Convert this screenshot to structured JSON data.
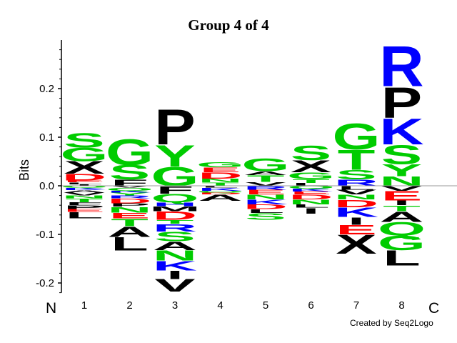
{
  "chart_data": {
    "type": "sequence-logo",
    "title": "Group 4 of 4",
    "ylabel": "Bits",
    "xlabel": "",
    "ylim": [
      -0.22,
      0.3
    ],
    "yticks": [
      0.2,
      0.1,
      0.0,
      -0.1,
      -0.2
    ],
    "ytick_labels": [
      "0.2",
      "0.1",
      "0.0",
      "-0.1",
      "-0.2"
    ],
    "positions": [
      "1",
      "2",
      "3",
      "4",
      "5",
      "6",
      "7",
      "8"
    ],
    "n_label": "N",
    "c_label": "C",
    "grid": false,
    "legend": "none",
    "colors": {
      "polar": "#00cc00",
      "hydrophobic": "#000000",
      "basic": "#0000ff",
      "acidic": "#ff0000",
      "ST_small": "#00cc00"
    },
    "columns": [
      {
        "position": "1",
        "positive": [
          {
            "aa": "I",
            "bits": 0.003
          },
          {
            "aa": "L",
            "bits": 0.004
          },
          {
            "aa": "E",
            "bits": 0.004
          },
          {
            "aa": "D",
            "bits": 0.014
          },
          {
            "aa": "X",
            "bits": 0.026
          },
          {
            "aa": "G",
            "bits": 0.028
          },
          {
            "aa": "S",
            "bits": 0.03
          }
        ],
        "negative": [
          {
            "aa": "Q",
            "bits": 0.004
          },
          {
            "aa": "K",
            "bits": 0.005
          },
          {
            "aa": "A",
            "bits": 0.005
          },
          {
            "aa": "V",
            "bits": 0.006
          },
          {
            "aa": "N",
            "bits": 0.006
          },
          {
            "aa": "T",
            "bits": 0.008
          },
          {
            "aa": "F",
            "bits": 0.006
          },
          {
            "aa": "P",
            "bits": 0.008
          },
          {
            "aa": "E",
            "bits": 0.006
          },
          {
            "aa": "L",
            "bits": 0.013
          }
        ]
      },
      {
        "position": "2",
        "positive": [
          {
            "aa": "F",
            "bits": 0.013
          },
          {
            "aa": "S",
            "bits": 0.03
          },
          {
            "aa": "G",
            "bits": 0.055
          }
        ],
        "negative": [
          {
            "aa": "V",
            "bits": 0.004
          },
          {
            "aa": "Q",
            "bits": 0.006
          },
          {
            "aa": "K",
            "bits": 0.004
          },
          {
            "aa": "Y",
            "bits": 0.006
          },
          {
            "aa": "R",
            "bits": 0.006
          },
          {
            "aa": "D",
            "bits": 0.01
          },
          {
            "aa": "P",
            "bits": 0.007
          },
          {
            "aa": "N",
            "bits": 0.012
          },
          {
            "aa": "E",
            "bits": 0.012
          },
          {
            "aa": "T",
            "bits": 0.016
          },
          {
            "aa": "A",
            "bits": 0.022
          },
          {
            "aa": "L",
            "bits": 0.028
          }
        ]
      },
      {
        "position": "3",
        "positive": [
          {
            "aa": "G",
            "bits": 0.04
          },
          {
            "aa": "Y",
            "bits": 0.045
          },
          {
            "aa": "P",
            "bits": 0.075
          }
        ],
        "negative": [
          {
            "aa": "F",
            "bits": 0.016
          },
          {
            "aa": "Q",
            "bits": 0.018
          },
          {
            "aa": "H",
            "bits": 0.008
          },
          {
            "aa": "M",
            "bits": 0.01
          },
          {
            "aa": "D",
            "bits": 0.018
          },
          {
            "aa": "T",
            "bits": 0.008
          },
          {
            "aa": "R",
            "bits": 0.016
          },
          {
            "aa": "S",
            "bits": 0.02
          },
          {
            "aa": "A",
            "bits": 0.018
          },
          {
            "aa": "N",
            "bits": 0.022
          },
          {
            "aa": "K",
            "bits": 0.02
          },
          {
            "aa": "I",
            "bits": 0.018
          },
          {
            "aa": "V",
            "bits": 0.026
          }
        ]
      },
      {
        "position": "4",
        "positive": [
          {
            "aa": "T",
            "bits": 0.007
          },
          {
            "aa": "N",
            "bits": 0.008
          },
          {
            "aa": "D",
            "bits": 0.013
          },
          {
            "aa": "E",
            "bits": 0.01
          },
          {
            "aa": "G",
            "bits": 0.011
          }
        ],
        "negative": [
          {
            "aa": "L",
            "bits": 0.004
          },
          {
            "aa": "K",
            "bits": 0.006
          },
          {
            "aa": "Q",
            "bits": 0.004
          },
          {
            "aa": "D",
            "bits": 0.004
          },
          {
            "aa": "A",
            "bits": 0.013
          }
        ]
      },
      {
        "position": "5",
        "positive": [
          {
            "aa": "V",
            "bits": 0.008
          },
          {
            "aa": "T",
            "bits": 0.014
          },
          {
            "aa": "A",
            "bits": 0.008
          },
          {
            "aa": "G",
            "bits": 0.026
          }
        ],
        "negative": [
          {
            "aa": "R",
            "bits": 0.008
          },
          {
            "aa": "E",
            "bits": 0.01
          },
          {
            "aa": "N",
            "bits": 0.01
          },
          {
            "aa": "K",
            "bits": 0.01
          },
          {
            "aa": "D",
            "bits": 0.01
          },
          {
            "aa": "L",
            "bits": 0.008
          },
          {
            "aa": "S",
            "bits": 0.014
          }
        ]
      },
      {
        "position": "6",
        "positive": [
          {
            "aa": "L",
            "bits": 0.006
          },
          {
            "aa": "T",
            "bits": 0.008
          },
          {
            "aa": "G",
            "bits": 0.014
          },
          {
            "aa": "X",
            "bits": 0.025
          },
          {
            "aa": "S",
            "bits": 0.03
          }
        ],
        "negative": [
          {
            "aa": "Q",
            "bits": 0.006
          },
          {
            "aa": "K",
            "bits": 0.006
          },
          {
            "aa": "E",
            "bits": 0.006
          },
          {
            "aa": "D",
            "bits": 0.01
          },
          {
            "aa": "N",
            "bits": 0.01
          },
          {
            "aa": "L",
            "bits": 0.007
          },
          {
            "aa": "I",
            "bits": 0.012
          }
        ]
      },
      {
        "position": "7",
        "positive": [
          {
            "aa": "R",
            "bits": 0.013
          },
          {
            "aa": "S",
            "bits": 0.02
          },
          {
            "aa": "T",
            "bits": 0.042
          },
          {
            "aa": "G",
            "bits": 0.055
          }
        ],
        "negative": [
          {
            "aa": "L",
            "bits": 0.008
          },
          {
            "aa": "V",
            "bits": 0.01
          },
          {
            "aa": "N",
            "bits": 0.01
          },
          {
            "aa": "D",
            "bits": 0.016
          },
          {
            "aa": "K",
            "bits": 0.02
          },
          {
            "aa": "I",
            "bits": 0.016
          },
          {
            "aa": "E",
            "bits": 0.02
          },
          {
            "aa": "X",
            "bits": 0.04
          }
        ]
      },
      {
        "position": "8",
        "positive": [
          {
            "aa": "N",
            "bits": 0.02
          },
          {
            "aa": "Y",
            "bits": 0.025
          },
          {
            "aa": "S",
            "bits": 0.04
          },
          {
            "aa": "K",
            "bits": 0.055
          },
          {
            "aa": "P",
            "bits": 0.065
          },
          {
            "aa": "R",
            "bits": 0.085
          }
        ],
        "negative": [
          {
            "aa": "V",
            "bits": 0.01
          },
          {
            "aa": "E",
            "bits": 0.02
          },
          {
            "aa": "I",
            "bits": 0.01
          },
          {
            "aa": "T",
            "bits": 0.012
          },
          {
            "aa": "A",
            "bits": 0.022
          },
          {
            "aa": "Q",
            "bits": 0.028
          },
          {
            "aa": "G",
            "bits": 0.03
          },
          {
            "aa": "L",
            "bits": 0.032
          }
        ]
      }
    ]
  },
  "credit": "Created by Seq2Logo"
}
